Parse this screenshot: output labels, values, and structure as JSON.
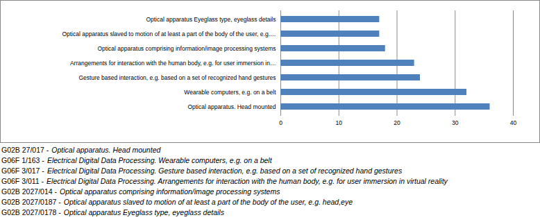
{
  "chart_data": {
    "type": "bar",
    "orientation": "horizontal",
    "categories": [
      "Optical apparatus Eyeglass type, eyeglass details",
      "Optical apparatus slaved to motion of at least a part of the body of the user, e.g.…",
      "Optical apparatus comprising information/image processing systems",
      "Arrangements for interaction with the human body, e.g. for user immersion in…",
      "Gesture based interaction, e.g. based on a set of recognized hand gestures",
      "Wearable computers, e.g. on a belt",
      "Optical apparatus. Head mounted"
    ],
    "values": [
      17,
      17,
      18,
      23,
      24,
      32,
      36
    ],
    "color": "#4F81BD",
    "xlim": [
      0,
      40
    ],
    "xticks": [
      0,
      10,
      20,
      30,
      40
    ],
    "grid": true,
    "annotations": [
      {
        "code": "G02B 27/017 -",
        "text": "Optical apparatus. Head mounted"
      },
      {
        "code": "G06F 1/163 -",
        "text": "Electrical Digital Data Processing. Wearable computers, e.g. on a belt"
      },
      {
        "code": "G06F 3/017 -",
        "text": "Electrical Digital Data Processing. Gesture based interaction, e.g. based on a set of recognized hand gestures"
      },
      {
        "code": "G06F 3/011 -",
        "text": "Electrical Digital Data Processing. Arrangements for interaction with the human body, e.g. for user immersion in virtual reality"
      },
      {
        "code": "G02B 2027/014 -",
        "text": "Optical apparatus comprising information/image processing systems"
      },
      {
        "code": "G02B 2027/0187 -",
        "text": "Optical apparatus slaved to motion of at least a part of the body of the user, e.g. head,eye"
      },
      {
        "code": "G02B 2027/0178 -",
        "text": "Optical apparatus Eyeglass type, eyeglass details"
      }
    ]
  }
}
